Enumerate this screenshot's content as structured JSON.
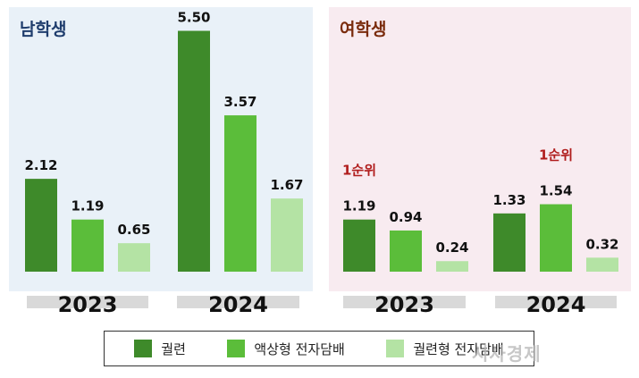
{
  "colors": {
    "series": [
      "#3e8a2a",
      "#5bbd3a",
      "#b4e3a4"
    ],
    "male_title": "#1f3d6d",
    "female_title": "#7a2b0c",
    "rank_label": "#b01c1c",
    "year_bar": "#d9d9d9"
  },
  "panels": {
    "male": {
      "title": "남학생"
    },
    "female": {
      "title": "여학생"
    }
  },
  "watermark": "시사경제",
  "chart_data": [
    {
      "type": "bar",
      "title": "남학생",
      "categories": [
        "2023",
        "2024"
      ],
      "series": [
        {
          "name": "궐련",
          "values": [
            2.12,
            5.5
          ]
        },
        {
          "name": "액상형 전자담배",
          "values": [
            1.19,
            3.57
          ]
        },
        {
          "name": "궐련형 전자담배",
          "values": [
            0.65,
            1.67
          ]
        }
      ],
      "ylim": [
        0,
        5.5
      ],
      "grid": false,
      "legend": "bottom"
    },
    {
      "type": "bar",
      "title": "여학생",
      "categories": [
        "2023",
        "2024"
      ],
      "series": [
        {
          "name": "궐련",
          "values": [
            1.19,
            1.33
          ]
        },
        {
          "name": "액상형 전자담배",
          "values": [
            0.94,
            1.54
          ]
        },
        {
          "name": "궐련형 전자담배",
          "values": [
            0.24,
            0.32
          ]
        }
      ],
      "ylim": [
        0,
        5.5
      ],
      "grid": false,
      "legend": "bottom",
      "annotations": [
        {
          "text": "1순위",
          "category": "2023",
          "series": "궐련"
        },
        {
          "text": "1순위",
          "category": "2024",
          "series": "액상형 전자담배"
        }
      ]
    }
  ]
}
